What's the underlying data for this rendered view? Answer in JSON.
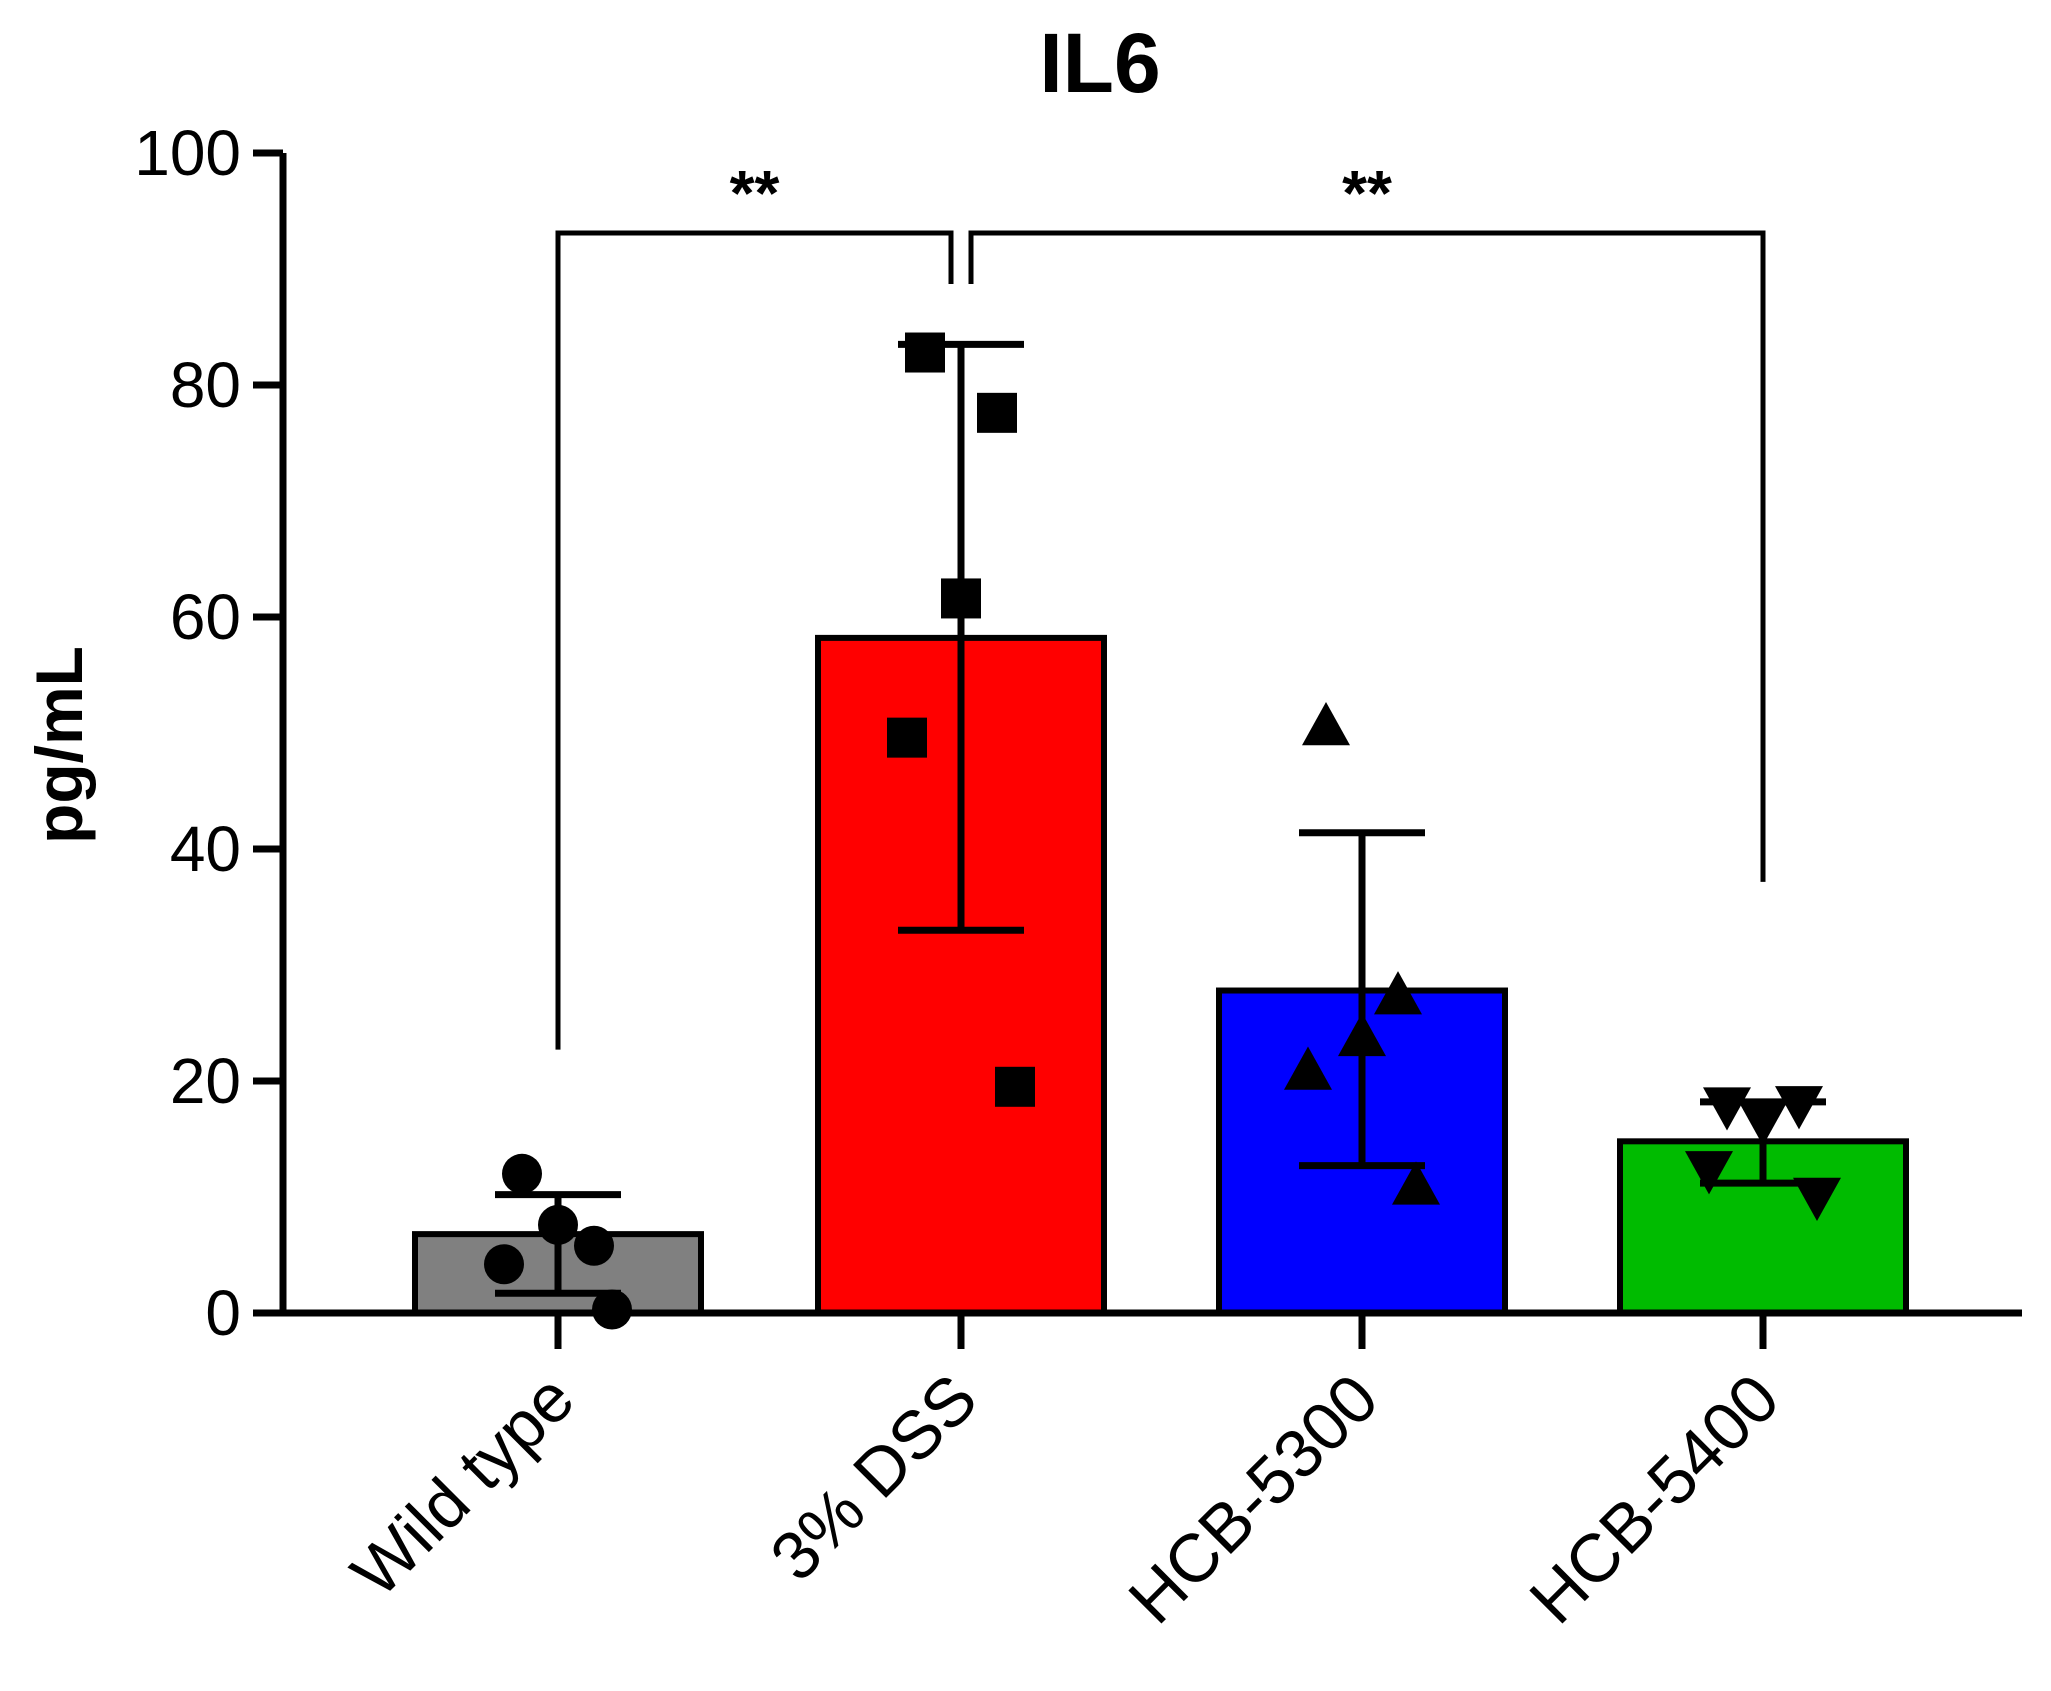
{
  "chart_data": {
    "type": "bar",
    "title": "IL6",
    "xlabel": "",
    "ylabel": "pg/mL",
    "ylim": [
      0,
      100
    ],
    "yticks": [
      0,
      20,
      40,
      60,
      80,
      100
    ],
    "grid": false,
    "categories": [
      "Wild type",
      "3% DSS",
      "HCB-5300",
      "HCB-5400"
    ],
    "values": [
      6.8,
      58.2,
      27.8,
      14.8
    ],
    "error": [
      {
        "low": 1.7,
        "high": 10.2
      },
      {
        "low": 33.0,
        "high": 83.5
      },
      {
        "low": 12.7,
        "high": 41.4
      },
      {
        "low": 11.2,
        "high": 18.2
      }
    ],
    "colors": [
      "#808080",
      "#ff0000",
      "#0000ff",
      "#00bb00"
    ],
    "markers": [
      "circle",
      "square",
      "triangle-up",
      "triangle-down"
    ],
    "points": [
      [
        12.0,
        5.8,
        7.6,
        4.2,
        0.3
      ],
      [
        82.8,
        77.6,
        61.6,
        49.6,
        19.5
      ],
      [
        50.6,
        27.4,
        23.8,
        20.9,
        11.0
      ],
      [
        17.8,
        17.9,
        16.5,
        12.3,
        10.0
      ]
    ],
    "annotations": [
      {
        "from": 0,
        "to": 1,
        "label": "**"
      },
      {
        "from": 1,
        "to": 3,
        "label": "**"
      }
    ]
  }
}
